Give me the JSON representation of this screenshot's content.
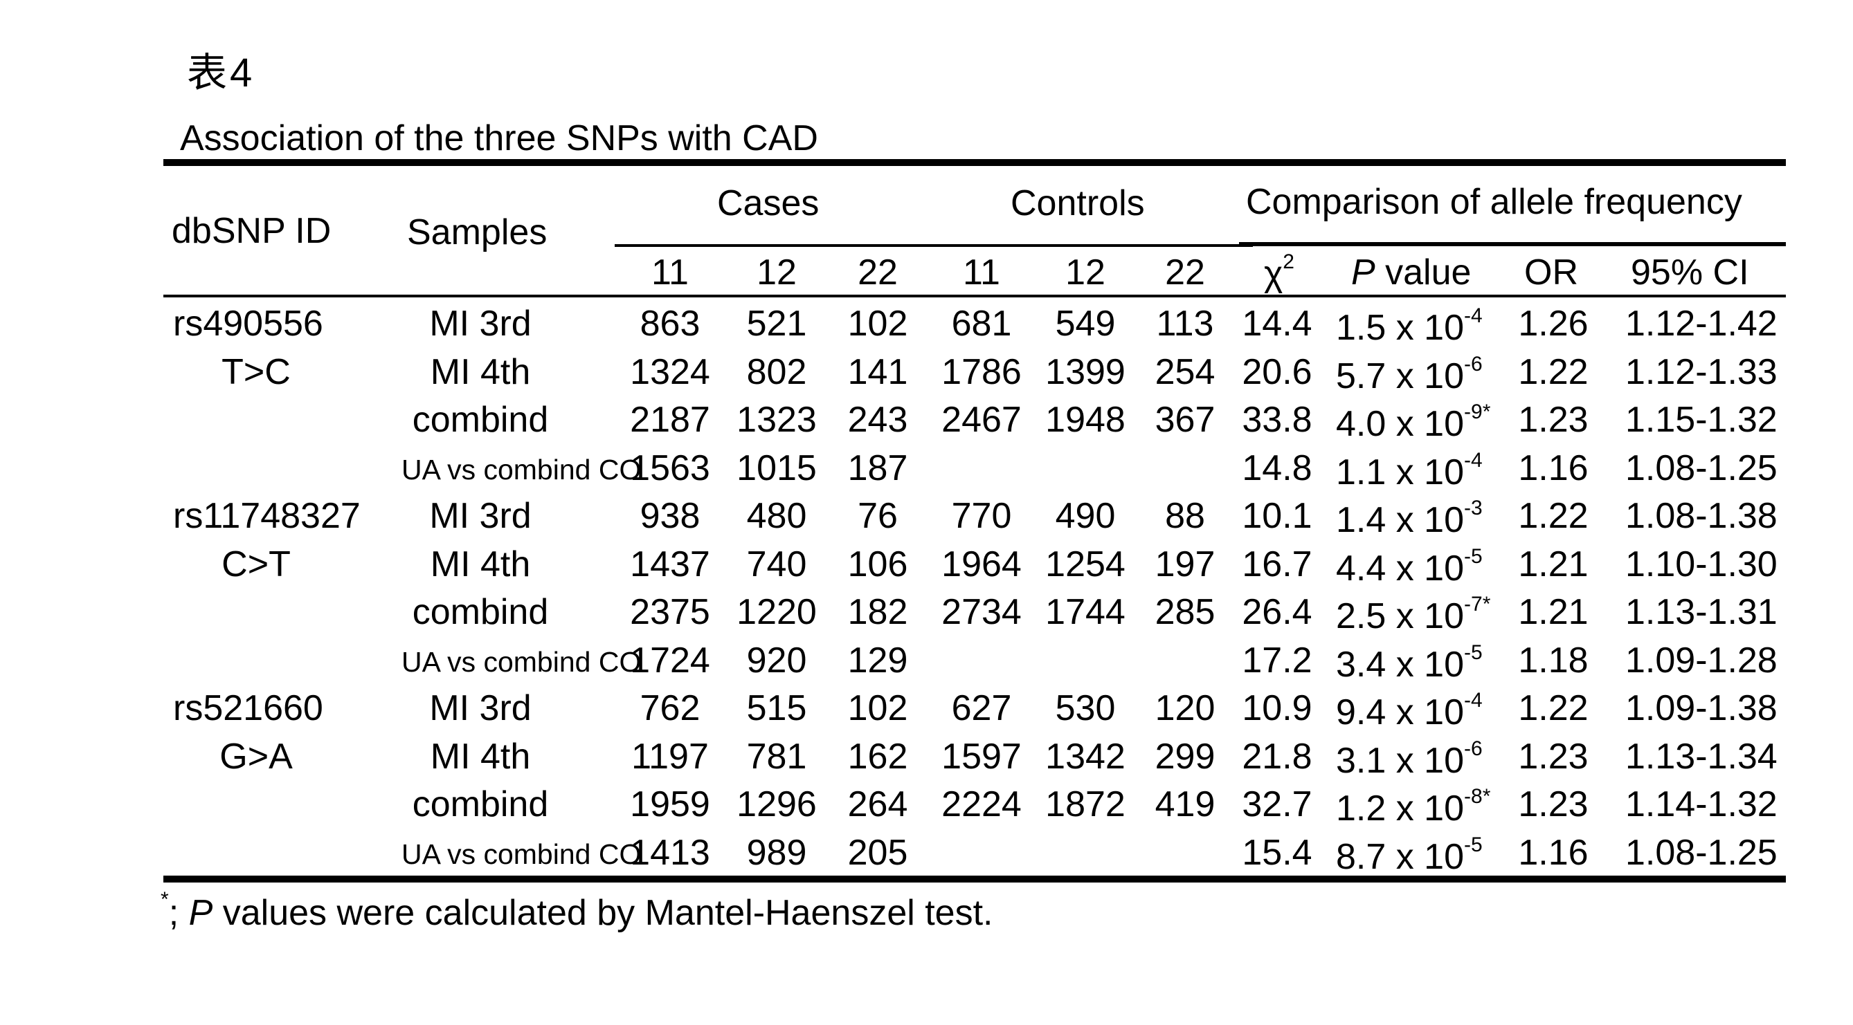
{
  "table_label": "表4",
  "title": "Association of the three SNPs with CAD",
  "headers": {
    "dbsnp_id": "dbSNP ID",
    "samples": "Samples",
    "cases": "Cases",
    "controls": "Controls",
    "comparison": "Comparison of allele frequency",
    "genotypes": [
      "11",
      "12",
      "22"
    ],
    "chi2": "χ",
    "chi2_sup": "2",
    "p_value_italic": "P",
    "p_value_rest": " value",
    "or": "OR",
    "ci": "95% CI"
  },
  "rows": [
    {
      "snp": "rs490556",
      "allele": "",
      "sample": "MI 3rd",
      "cases": [
        "863",
        "521",
        "102"
      ],
      "controls": [
        "681",
        "549",
        "113"
      ],
      "chi2": "14.4",
      "p_base": "1.5 x 10",
      "p_exp": "-4",
      "or": "1.26",
      "ci": "1.12-1.42"
    },
    {
      "snp": "",
      "allele": "T>C",
      "sample": "MI 4th",
      "cases": [
        "1324",
        "802",
        "141"
      ],
      "controls": [
        "1786",
        "1399",
        "254"
      ],
      "chi2": "20.6",
      "p_base": "5.7 x 10",
      "p_exp": "-6",
      "or": "1.22",
      "ci": "1.12-1.33"
    },
    {
      "snp": "",
      "allele": "",
      "sample": "combind",
      "cases": [
        "2187",
        "1323",
        "243"
      ],
      "controls": [
        "2467",
        "1948",
        "367"
      ],
      "chi2": "33.8",
      "p_base": "4.0 x 10",
      "p_exp": "-9*",
      "or": "1.23",
      "ci": "1.15-1.32"
    },
    {
      "snp": "",
      "allele": "",
      "sample": "UA vs combind CO",
      "cases": [
        "1563",
        "1015",
        "187"
      ],
      "controls": [
        "",
        "",
        ""
      ],
      "chi2": "14.8",
      "p_base": "1.1 x 10",
      "p_exp": "-4",
      "or": "1.16",
      "ci": "1.08-1.25"
    },
    {
      "snp": "rs11748327",
      "allele": "",
      "sample": "MI 3rd",
      "cases": [
        "938",
        "480",
        "76"
      ],
      "controls": [
        "770",
        "490",
        "88"
      ],
      "chi2": "10.1",
      "p_base": "1.4 x 10",
      "p_exp": "-3",
      "or": "1.22",
      "ci": "1.08-1.38"
    },
    {
      "snp": "",
      "allele": "C>T",
      "sample": "MI 4th",
      "cases": [
        "1437",
        "740",
        "106"
      ],
      "controls": [
        "1964",
        "1254",
        "197"
      ],
      "chi2": "16.7",
      "p_base": "4.4 x 10",
      "p_exp": "-5",
      "or": "1.21",
      "ci": "1.10-1.30"
    },
    {
      "snp": "",
      "allele": "",
      "sample": "combind",
      "cases": [
        "2375",
        "1220",
        "182"
      ],
      "controls": [
        "2734",
        "1744",
        "285"
      ],
      "chi2": "26.4",
      "p_base": "2.5 x 10",
      "p_exp": "-7*",
      "or": "1.21",
      "ci": "1.13-1.31"
    },
    {
      "snp": "",
      "allele": "",
      "sample": "UA vs combind CO",
      "cases": [
        "1724",
        "920",
        "129"
      ],
      "controls": [
        "",
        "",
        ""
      ],
      "chi2": "17.2",
      "p_base": "3.4 x 10",
      "p_exp": "-5",
      "or": "1.18",
      "ci": "1.09-1.28"
    },
    {
      "snp": "rs521660",
      "allele": "",
      "sample": "MI 3rd",
      "cases": [
        "762",
        "515",
        "102"
      ],
      "controls": [
        "627",
        "530",
        "120"
      ],
      "chi2": "10.9",
      "p_base": "9.4 x 10",
      "p_exp": "-4",
      "or": "1.22",
      "ci": "1.09-1.38"
    },
    {
      "snp": "",
      "allele": "G>A",
      "sample": "MI 4th",
      "cases": [
        "1197",
        "781",
        "162"
      ],
      "controls": [
        "1597",
        "1342",
        "299"
      ],
      "chi2": "21.8",
      "p_base": "3.1 x 10",
      "p_exp": "-6",
      "or": "1.23",
      "ci": "1.13-1.34"
    },
    {
      "snp": "",
      "allele": "",
      "sample": "combind",
      "cases": [
        "1959",
        "1296",
        "264"
      ],
      "controls": [
        "2224",
        "1872",
        "419"
      ],
      "chi2": "32.7",
      "p_base": "1.2 x 10",
      "p_exp": "-8*",
      "or": "1.23",
      "ci": "1.14-1.32"
    },
    {
      "snp": "",
      "allele": "",
      "sample": "UA vs combind CO",
      "cases": [
        "1413",
        "989",
        "205"
      ],
      "controls": [
        "",
        "",
        ""
      ],
      "chi2": "15.4",
      "p_base": "8.7 x 10",
      "p_exp": "-5",
      "or": "1.16",
      "ci": "1.08-1.25"
    }
  ],
  "footnote": {
    "marker": "*",
    "sep": "; ",
    "italic": "P",
    "text": " values were calculated by Mantel-Haenszel test."
  }
}
